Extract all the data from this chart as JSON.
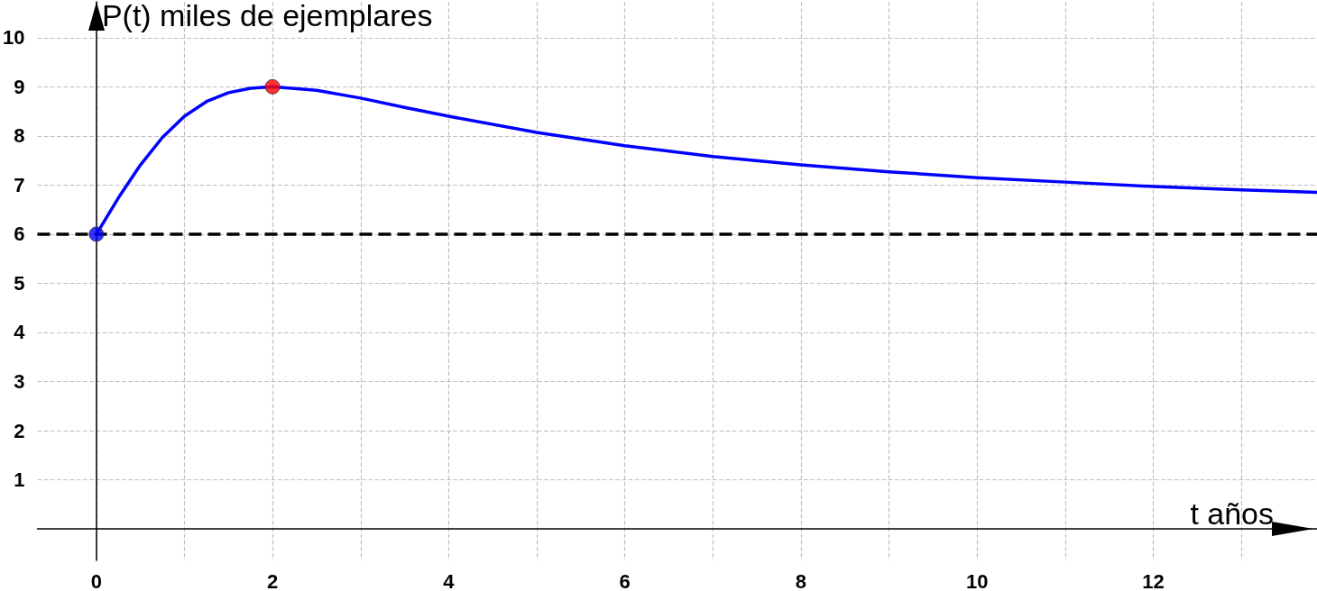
{
  "chart_data": {
    "type": "line",
    "xlabel": "t años",
    "ylabel": "P(t) miles de ejemplares",
    "xlim": [
      -0.67,
      13.86
    ],
    "ylim": [
      -0.64,
      10.73
    ],
    "xticks": [
      0,
      {
        "value": 1,
        "label": null
      },
      2,
      {
        "value": 3,
        "label": null
      },
      4,
      {
        "value": 5,
        "label": null
      },
      6,
      {
        "value": 7,
        "label": null
      },
      8,
      {
        "value": 9,
        "label": null
      },
      10,
      {
        "value": 11,
        "label": null
      },
      12,
      {
        "value": 13,
        "label": null
      }
    ],
    "yticks": [
      1,
      2,
      3,
      4,
      5,
      6,
      7,
      8,
      9,
      10
    ],
    "grid": true,
    "marker": "none",
    "line_style": "solid",
    "series": [
      {
        "color": "#0000ff",
        "x": [
          0,
          0.25,
          0.5,
          0.75,
          1,
          1.25,
          1.5,
          1.75,
          2,
          2.5,
          3,
          3.5,
          4,
          5,
          6,
          7,
          8,
          9,
          10,
          11,
          12,
          13,
          13.86
        ],
        "values": [
          6,
          6.74,
          7.41,
          7.97,
          8.4,
          8.7,
          8.88,
          8.97,
          9,
          8.93,
          8.77,
          8.58,
          8.4,
          8.07,
          7.8,
          7.58,
          7.41,
          7.27,
          7.15,
          7.06,
          6.97,
          6.9,
          6.85
        ]
      },
      {
        "type": "scatter",
        "marker": "circle",
        "x": [
          0,
          2
        ],
        "values": [
          6,
          9
        ],
        "colors": [
          "#0000ff",
          "#ff0000"
        ]
      }
    ],
    "ref_lines": [
      {
        "axis": "y",
        "value": 6,
        "color": "#000000",
        "line_style": "dashed"
      }
    ]
  }
}
